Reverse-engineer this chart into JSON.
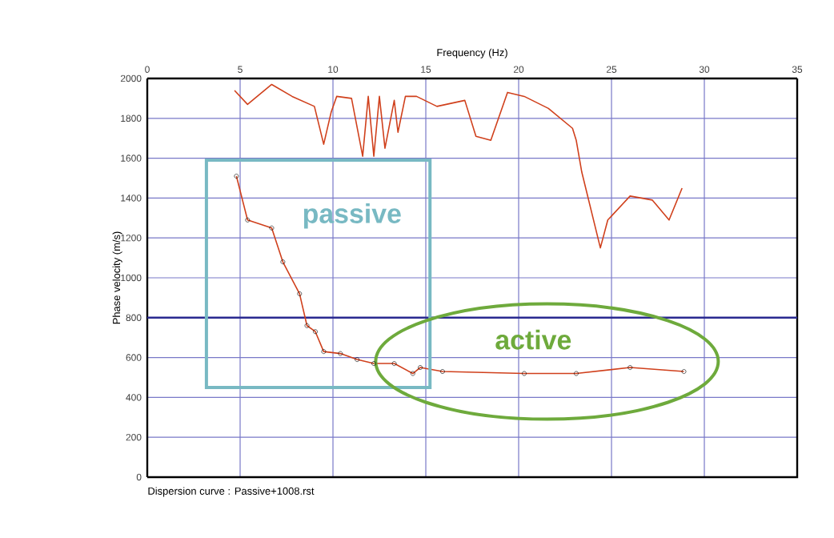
{
  "chart_data": {
    "type": "line",
    "xlabel": "Frequency (Hz)",
    "ylabel": "Phase velocity (m/s)",
    "xlim": [
      0,
      35
    ],
    "xticks": [
      0,
      5,
      10,
      15,
      20,
      25,
      30,
      35
    ],
    "ylim": [
      0,
      2000
    ],
    "yticks": [
      0,
      200,
      400,
      600,
      800,
      1000,
      1200,
      1400,
      1600,
      1800,
      2000
    ],
    "grid": true,
    "series": [
      {
        "color": "#d0401c",
        "x": [
          4.7,
          5.4,
          6.7,
          7.8,
          9.0,
          9.5,
          9.9,
          10.2,
          11.0,
          11.6,
          11.9,
          12.2,
          12.5,
          12.8,
          13.3,
          13.5,
          13.9,
          14.5,
          15.6,
          17.1,
          17.7,
          18.5,
          19.4,
          20.3,
          21.6,
          22.9,
          23.1,
          23.4,
          24.4,
          24.8,
          26.0,
          27.2,
          28.1,
          28.8
        ],
        "values": [
          1940,
          1870,
          1970,
          1910,
          1860,
          1670,
          1830,
          1910,
          1900,
          1610,
          1910,
          1610,
          1910,
          1650,
          1890,
          1730,
          1910,
          1910,
          1860,
          1890,
          1710,
          1690,
          1930,
          1910,
          1850,
          1750,
          1690,
          1530,
          1150,
          1290,
          1410,
          1390,
          1290,
          1450
        ]
      },
      {
        "color": "#d0401c",
        "marker": "circle",
        "x": [
          4.8,
          5.4,
          6.7,
          7.3,
          8.2,
          8.6,
          9.05,
          9.5,
          10.4,
          11.3,
          12.2,
          13.3,
          14.3,
          14.7,
          15.9,
          20.3,
          23.1,
          26.0,
          28.9
        ],
        "values": [
          1510,
          1290,
          1250,
          1080,
          920,
          760,
          730,
          630,
          620,
          590,
          570,
          570,
          520,
          550,
          530,
          520,
          520,
          550,
          530
        ]
      }
    ],
    "ref_lines": [
      {
        "axis": "y",
        "value": 800,
        "color": "#2a2a90"
      }
    ],
    "annotations": [
      "passive",
      "active",
      "Dispersion curve : Passive+1008.rst"
    ]
  }
}
